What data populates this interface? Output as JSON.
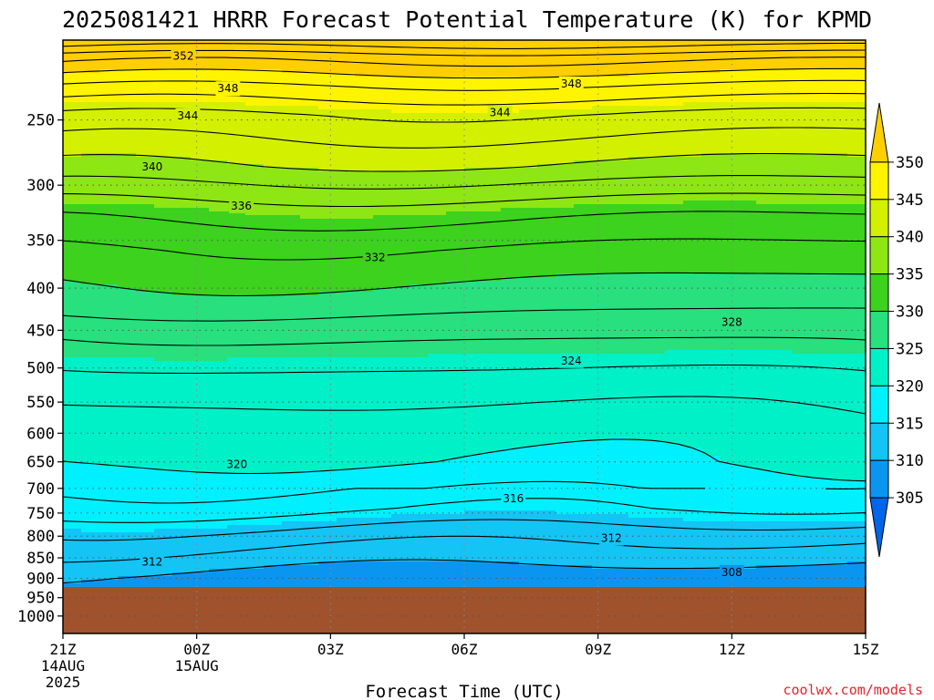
{
  "page": {
    "title": "2025081421 HRRR Forecast Potential Temperature (K) for KPMD",
    "credit": "coolwx.com/models"
  },
  "chart_data": {
    "type": "heatmap",
    "title": "2025081421 HRRR Forecast Potential Temperature (K) for KPMD",
    "xlabel": "Forecast Time (UTC)",
    "ylabel": "",
    "x_range_hours": [
      0,
      18
    ],
    "x_ticks": [
      {
        "hour": 0,
        "label": "21Z",
        "sub1": "14AUG",
        "sub2": "2025"
      },
      {
        "hour": 3,
        "label": "00Z",
        "sub1": "15AUG",
        "sub2": ""
      },
      {
        "hour": 6,
        "label": "03Z",
        "sub1": "",
        "sub2": ""
      },
      {
        "hour": 9,
        "label": "06Z",
        "sub1": "",
        "sub2": ""
      },
      {
        "hour": 12,
        "label": "09Z",
        "sub1": "",
        "sub2": ""
      },
      {
        "hour": 15,
        "label": "12Z",
        "sub1": "",
        "sub2": ""
      },
      {
        "hour": 18,
        "label": "15Z",
        "sub1": "",
        "sub2": ""
      }
    ],
    "y_scale": "log-pressure",
    "y_range_hpa": [
      1050,
      200
    ],
    "y_ticks": [
      250,
      300,
      350,
      400,
      450,
      500,
      550,
      600,
      650,
      700,
      750,
      800,
      850,
      900,
      950,
      1000
    ],
    "grid": "dotted",
    "surface_pressure_hpa": 922,
    "surface_color": "#a0522d",
    "colorbar": {
      "levels": [
        305,
        310,
        315,
        320,
        325,
        330,
        335,
        340,
        345,
        350
      ],
      "colors": [
        "#0065e8",
        "#0a96f0",
        "#14c4f5",
        "#00f0ff",
        "#00f0c8",
        "#28e07e",
        "#3cd21e",
        "#8ee614",
        "#d2f000",
        "#fff400",
        "#ffcf00"
      ],
      "extend": "both"
    },
    "contour_interval_K": 2,
    "theta_profile": [
      {
        "p": 200,
        "theta": 358
      },
      {
        "p": 210,
        "theta": 353
      },
      {
        "p": 228,
        "theta": 348
      },
      {
        "p": 247,
        "theta": 344
      },
      {
        "p": 285,
        "theta": 340
      },
      {
        "p": 322,
        "theta": 335
      },
      {
        "p": 360,
        "theta": 332
      },
      {
        "p": 420,
        "theta": 329
      },
      {
        "p": 460,
        "theta": 326
      },
      {
        "p": 510,
        "theta": 323.5
      },
      {
        "p": 580,
        "theta": 321
      },
      {
        "p": 650,
        "theta": 320
      },
      {
        "p": 740,
        "theta": 317
      },
      {
        "p": 800,
        "theta": 313.5
      },
      {
        "p": 850,
        "theta": 311.5
      },
      {
        "p": 900,
        "theta": 309.5
      },
      {
        "p": 922,
        "theta": 309
      }
    ],
    "contour_labels": [
      {
        "value": "352",
        "hour": 2.7,
        "p": 209
      },
      {
        "value": "348",
        "hour": 3.7,
        "p": 229
      },
      {
        "value": "348",
        "hour": 11.4,
        "p": 226
      },
      {
        "value": "344",
        "hour": 2.8,
        "p": 247
      },
      {
        "value": "344",
        "hour": 9.8,
        "p": 245
      },
      {
        "value": "340",
        "hour": 2.0,
        "p": 285
      },
      {
        "value": "336",
        "hour": 4.0,
        "p": 318
      },
      {
        "value": "332",
        "hour": 7.0,
        "p": 367
      },
      {
        "value": "328",
        "hour": 15.0,
        "p": 440
      },
      {
        "value": "324",
        "hour": 11.4,
        "p": 490
      },
      {
        "value": "320",
        "hour": 3.9,
        "p": 655
      },
      {
        "value": "316",
        "hour": 10.1,
        "p": 720
      },
      {
        "value": "312",
        "hour": 2.0,
        "p": 860
      },
      {
        "value": "312",
        "hour": 12.3,
        "p": 805
      },
      {
        "value": "308",
        "hour": 15.0,
        "p": 885
      }
    ]
  }
}
